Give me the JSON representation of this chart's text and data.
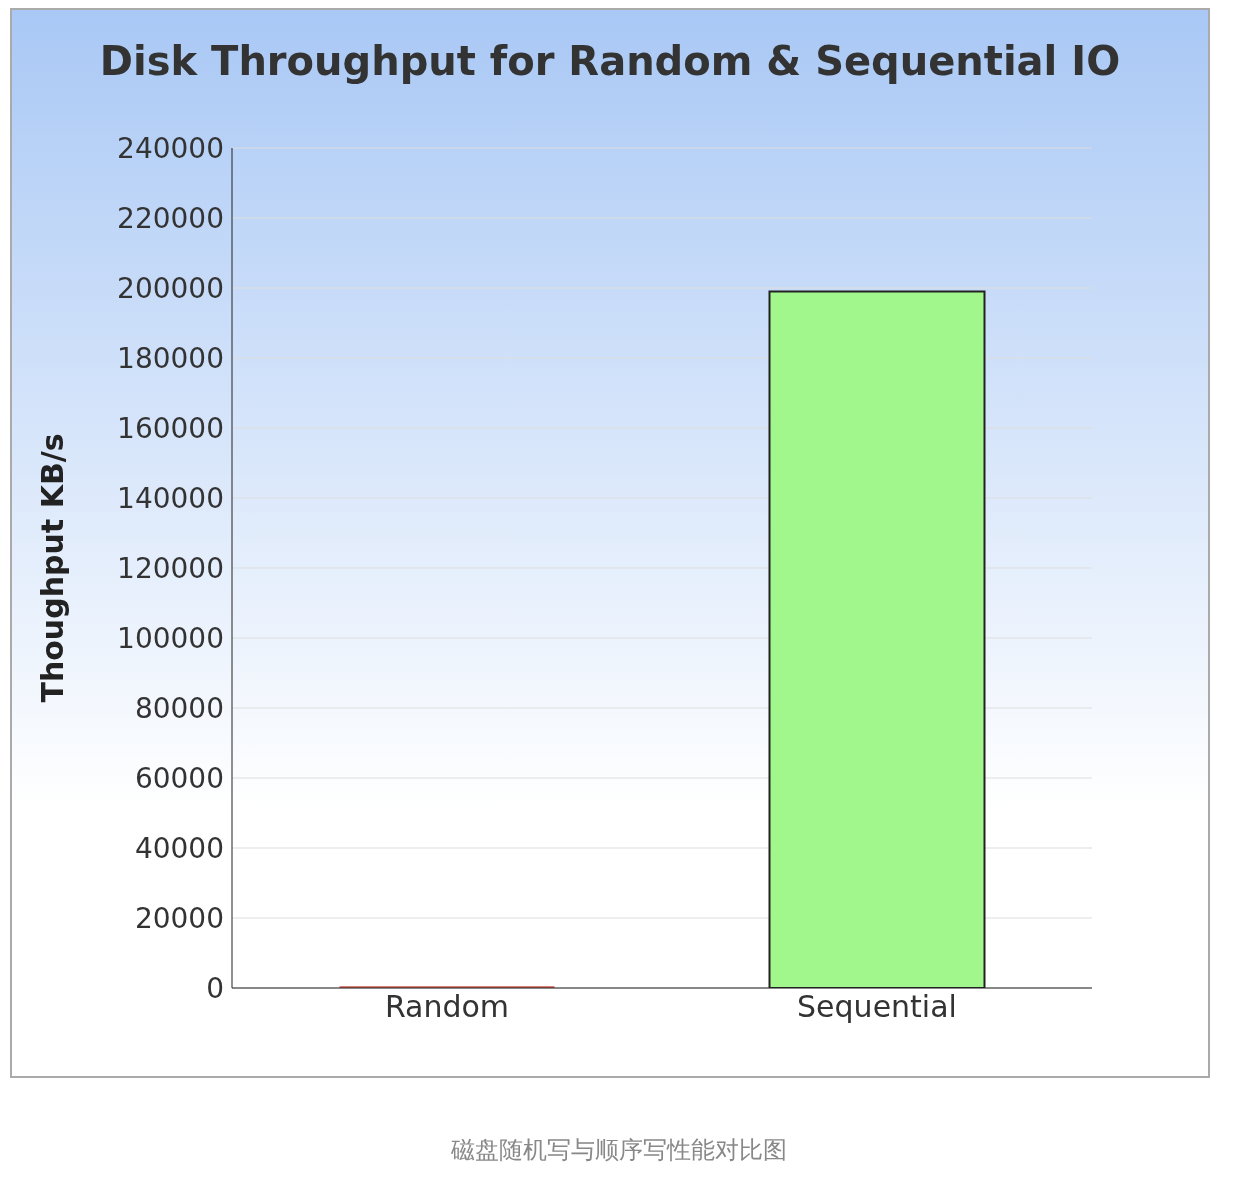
{
  "chart_data": {
    "type": "bar",
    "title": "Disk Throughput for Random & Sequential IO",
    "ylabel": "Thoughput KB/s",
    "categories": [
      "Random",
      "Sequential"
    ],
    "values": [
      500,
      199000
    ],
    "colors": [
      "#d0584e",
      "#a2f78c"
    ],
    "ylim": [
      0,
      240000
    ],
    "yticks": [
      0,
      20000,
      40000,
      60000,
      80000,
      100000,
      120000,
      140000,
      160000,
      180000,
      200000,
      220000,
      240000
    ],
    "grid": "y",
    "annotations": [
      "磁盘随机写与顺序写性能对比图"
    ]
  }
}
